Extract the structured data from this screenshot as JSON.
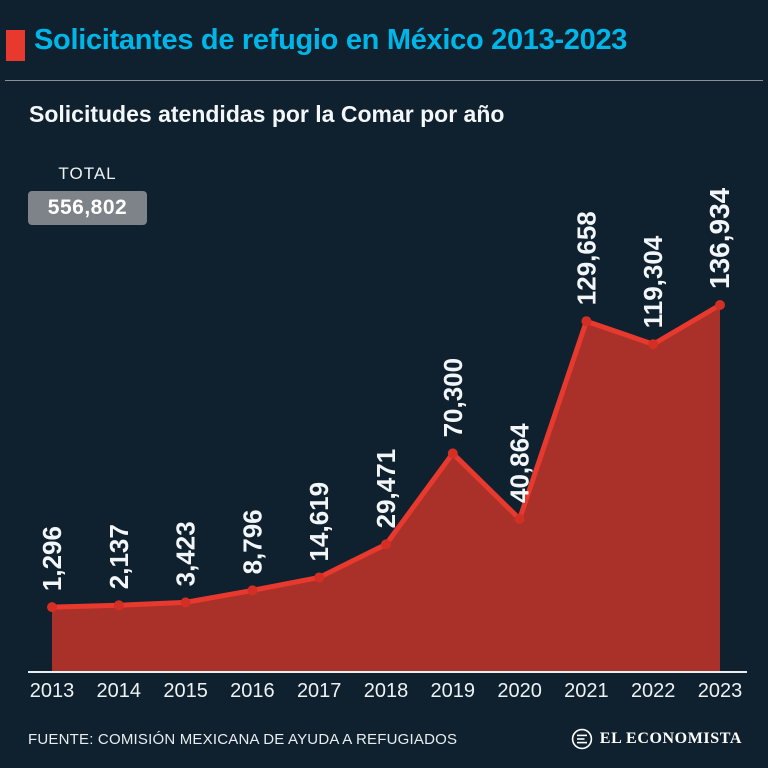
{
  "header": {
    "title": "Solicitantes de refugio en México 2013-2023",
    "subtitle": "Solicitudes atendidas por la Comar por año"
  },
  "total": {
    "label": "TOTAL",
    "value": "556,802"
  },
  "chart_data": {
    "type": "area",
    "title": "Solicitudes atendidas por la Comar por año",
    "categories": [
      "2013",
      "2014",
      "2015",
      "2016",
      "2017",
      "2018",
      "2019",
      "2020",
      "2021",
      "2022",
      "2023"
    ],
    "values": [
      1296,
      2137,
      3423,
      8796,
      14619,
      29471,
      70300,
      40864,
      129658,
      119304,
      136934
    ],
    "value_labels": [
      "1,296",
      "2,137",
      "3,423",
      "8,796",
      "14,619",
      "29,471",
      "70,300",
      "40,864",
      "129,658",
      "119,304",
      "136,934"
    ],
    "xlabel": "",
    "ylabel": "",
    "ylim": [
      0,
      140000
    ],
    "grid": false,
    "legend": "none",
    "line_color": "#e8392e",
    "area_color": "#a93129",
    "dot_color": "#d32f24",
    "axis_color": "#e9edf0",
    "label_color": "#f3f6f8",
    "highlight_last": true
  },
  "footer": {
    "source": "FUENTE: COMISIÓN MEXICANA DE AYUDA A REFUGIADOS",
    "brand": "EL ECONOMISTA"
  },
  "colors": {
    "background": "#0f212e",
    "accent_red": "#e8392e",
    "title_cyan": "#00b6e9",
    "badge_gray": "#7d8388"
  }
}
